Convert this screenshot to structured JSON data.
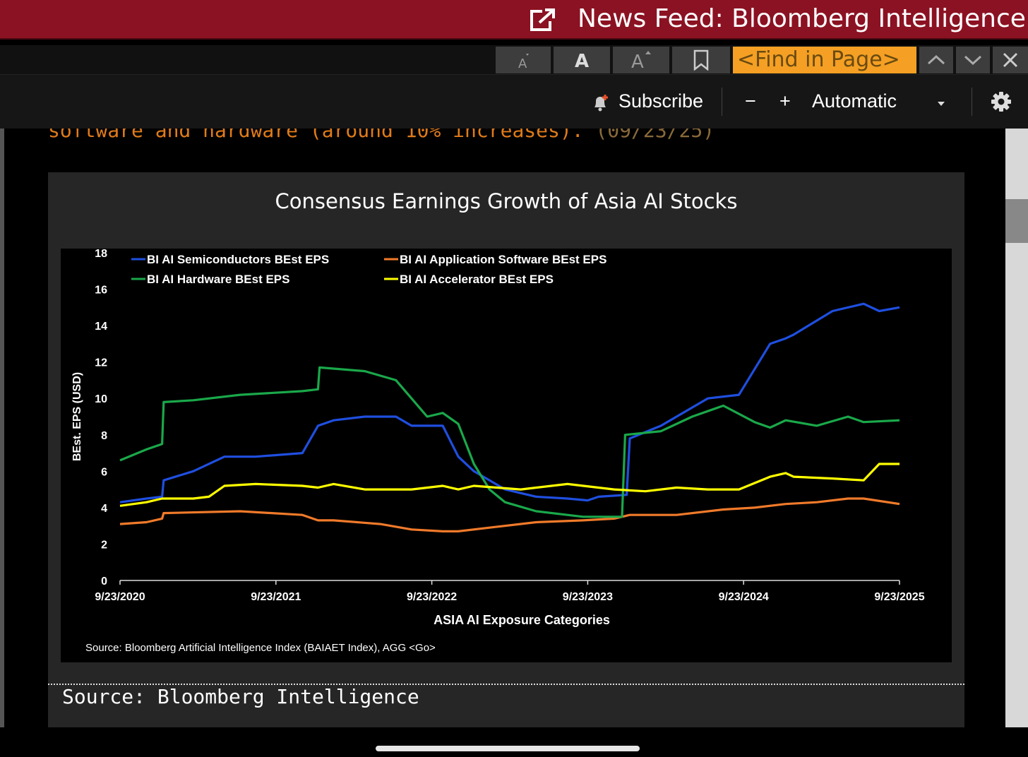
{
  "window": {
    "title": "News Feed: Bloomberg Intelligence"
  },
  "toolbar": {
    "find_placeholder": "<Find in Page>"
  },
  "controls": {
    "subscribe_label": "Subscribe",
    "minus_label": "−",
    "plus_label": "+",
    "mode_label": "Automatic"
  },
  "article": {
    "cut_text": "software and hardware (around 10% increases).",
    "cut_date": "(09/23/25)"
  },
  "figure": {
    "footer_source": "Source: Bloomberg Intelligence"
  },
  "chart_data": {
    "type": "line",
    "title": "Consensus Earnings Growth of Asia AI Stocks",
    "xlabel": "ASIA AI Exposure Categories",
    "ylabel": "BEst. EPS (USD)",
    "ylim": [
      0,
      18
    ],
    "yticks": [
      "0",
      "2",
      "4",
      "6",
      "8",
      "10",
      "12",
      "14",
      "16",
      "18"
    ],
    "xticks": [
      "9/23/2020",
      "9/23/2021",
      "9/23/2022",
      "9/23/2023",
      "9/23/2024",
      "9/23/2025"
    ],
    "source": "Source: Bloomberg Artificial Intelligence Index  (BAIAET Index), AGG <Go>",
    "legend_placement": "top-left",
    "series": [
      {
        "name": "BI AI Semiconductors BEst EPS",
        "color": "#1f4fe0",
        "x": [
          2020.73,
          2020.9,
          2021.0,
          2021.01,
          2021.2,
          2021.4,
          2021.6,
          2021.9,
          2022.0,
          2022.1,
          2022.3,
          2022.5,
          2022.6,
          2022.8,
          2022.9,
          2023.0,
          2023.2,
          2023.4,
          2023.6,
          2023.73,
          2023.8,
          2023.98,
          2024.0,
          2024.2,
          2024.5,
          2024.7,
          2024.9,
          2025.0,
          2025.05,
          2025.3,
          2025.5,
          2025.6,
          2025.73
        ],
        "y": [
          4.3,
          4.5,
          4.6,
          5.5,
          6.0,
          6.8,
          6.8,
          7.0,
          8.5,
          8.8,
          9.0,
          9.0,
          8.5,
          8.5,
          6.8,
          6.0,
          5.0,
          4.6,
          4.5,
          4.4,
          4.6,
          4.7,
          7.8,
          8.5,
          10.0,
          10.2,
          13.0,
          13.3,
          13.5,
          14.8,
          15.2,
          14.8,
          15.0
        ]
      },
      {
        "name": "BI AI Application Software BEst EPS",
        "color": "#f07a2a",
        "x": [
          2020.73,
          2020.9,
          2021.0,
          2021.01,
          2021.5,
          2021.9,
          2022.0,
          2022.1,
          2022.4,
          2022.6,
          2022.8,
          2022.9,
          2023.1,
          2023.4,
          2023.7,
          2023.9,
          2024.0,
          2024.3,
          2024.6,
          2024.8,
          2025.0,
          2025.2,
          2025.4,
          2025.5,
          2025.73
        ],
        "y": [
          3.1,
          3.2,
          3.4,
          3.7,
          3.8,
          3.6,
          3.3,
          3.3,
          3.1,
          2.8,
          2.7,
          2.7,
          2.9,
          3.2,
          3.3,
          3.4,
          3.6,
          3.6,
          3.9,
          4.0,
          4.2,
          4.3,
          4.5,
          4.5,
          4.2
        ]
      },
      {
        "name": "BI AI Hardware BEst EPS",
        "color": "#1aa84a",
        "x": [
          2020.73,
          2020.9,
          2021.0,
          2021.01,
          2021.2,
          2021.5,
          2021.9,
          2022.0,
          2022.01,
          2022.3,
          2022.5,
          2022.7,
          2022.8,
          2022.9,
          2023.0,
          2023.1,
          2023.2,
          2023.4,
          2023.7,
          2023.95,
          2023.97,
          2024.2,
          2024.4,
          2024.6,
          2024.8,
          2024.9,
          2025.0,
          2025.2,
          2025.4,
          2025.5,
          2025.73
        ],
        "y": [
          6.6,
          7.2,
          7.5,
          9.8,
          9.9,
          10.2,
          10.4,
          10.5,
          11.7,
          11.5,
          11.0,
          9.0,
          9.2,
          8.6,
          6.4,
          5.0,
          4.3,
          3.8,
          3.5,
          3.5,
          8.0,
          8.2,
          9.0,
          9.6,
          8.7,
          8.4,
          8.8,
          8.5,
          9.0,
          8.7,
          8.8
        ]
      },
      {
        "name": "BI AI Accelerator BEst EPS",
        "color": "#ffff00",
        "x": [
          2020.73,
          2020.9,
          2021.0,
          2021.2,
          2021.3,
          2021.4,
          2021.6,
          2021.9,
          2022.0,
          2022.1,
          2022.3,
          2022.6,
          2022.8,
          2022.9,
          2023.0,
          2023.3,
          2023.6,
          2023.9,
          2024.1,
          2024.3,
          2024.5,
          2024.7,
          2024.9,
          2025.0,
          2025.05,
          2025.3,
          2025.5,
          2025.6,
          2025.73
        ],
        "y": [
          4.1,
          4.3,
          4.5,
          4.5,
          4.6,
          5.2,
          5.3,
          5.2,
          5.1,
          5.3,
          5.0,
          5.0,
          5.2,
          5.0,
          5.2,
          5.0,
          5.3,
          5.0,
          4.9,
          5.1,
          5.0,
          5.0,
          5.7,
          5.9,
          5.7,
          5.6,
          5.5,
          6.4,
          6.4
        ]
      }
    ]
  },
  "colors": {
    "titlebar": "#8b1222",
    "find_bg": "#f5a024",
    "accent_orange": "#e07b1a"
  }
}
